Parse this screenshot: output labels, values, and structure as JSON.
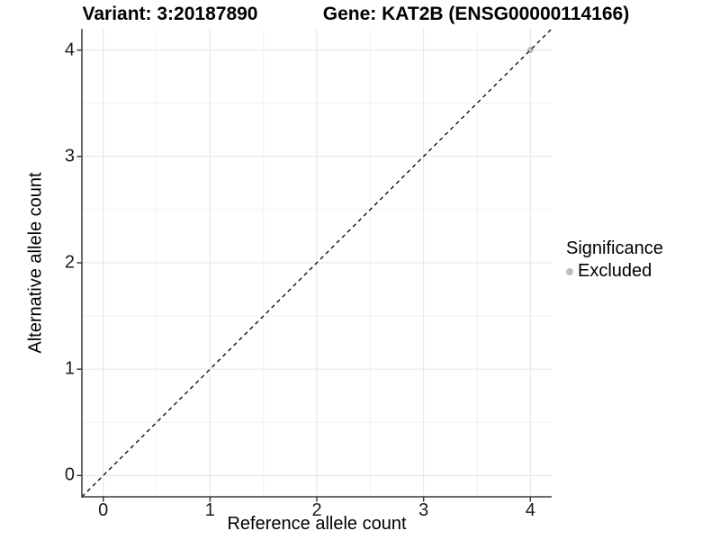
{
  "titles": {
    "variant": "Variant: 3:20187890",
    "gene": "Gene: KAT2B (ENSG00000114166)"
  },
  "axes": {
    "x": {
      "label": "Reference allele count",
      "range": [
        -0.2,
        4.2
      ],
      "major_ticks": [
        0,
        1,
        2,
        3,
        4
      ],
      "minor_ticks": [
        0.5,
        1.5,
        2.5,
        3.5
      ]
    },
    "y": {
      "label": "Alternative allele count",
      "range": [
        -0.2,
        4.2
      ],
      "major_ticks": [
        0,
        1,
        2,
        3,
        4
      ],
      "minor_ticks": [
        0.5,
        1.5,
        2.5,
        3.5
      ]
    }
  },
  "legend": {
    "title": "Significance",
    "items": [
      {
        "label": "Excluded",
        "color": "#bebebe"
      }
    ]
  },
  "chart_data": {
    "type": "scatter",
    "title": "Variant: 3:20187890    Gene: KAT2B (ENSG00000114166)",
    "xlabel": "Reference allele count",
    "ylabel": "Alternative allele count",
    "xlim": [
      -0.2,
      4.2
    ],
    "ylim": [
      -0.2,
      4.2
    ],
    "grid": "on",
    "legend_position": "right",
    "series": [
      {
        "name": "Excluded",
        "color": "#bebebe",
        "points": [
          {
            "x": 4,
            "y": 4
          }
        ]
      }
    ],
    "reference_line": {
      "kind": "identity",
      "slope": 1,
      "intercept": 0,
      "style": "dashed",
      "color": "#000000"
    }
  },
  "colors": {
    "background": "#ffffff",
    "grid_major": "#e4e4e4",
    "grid_minor": "#f1f1f1",
    "axis_line": "#3a3a3a",
    "tick_mark": "#3a3a3a",
    "point_excluded": "#bebebe",
    "dashed_line": "#000000"
  }
}
